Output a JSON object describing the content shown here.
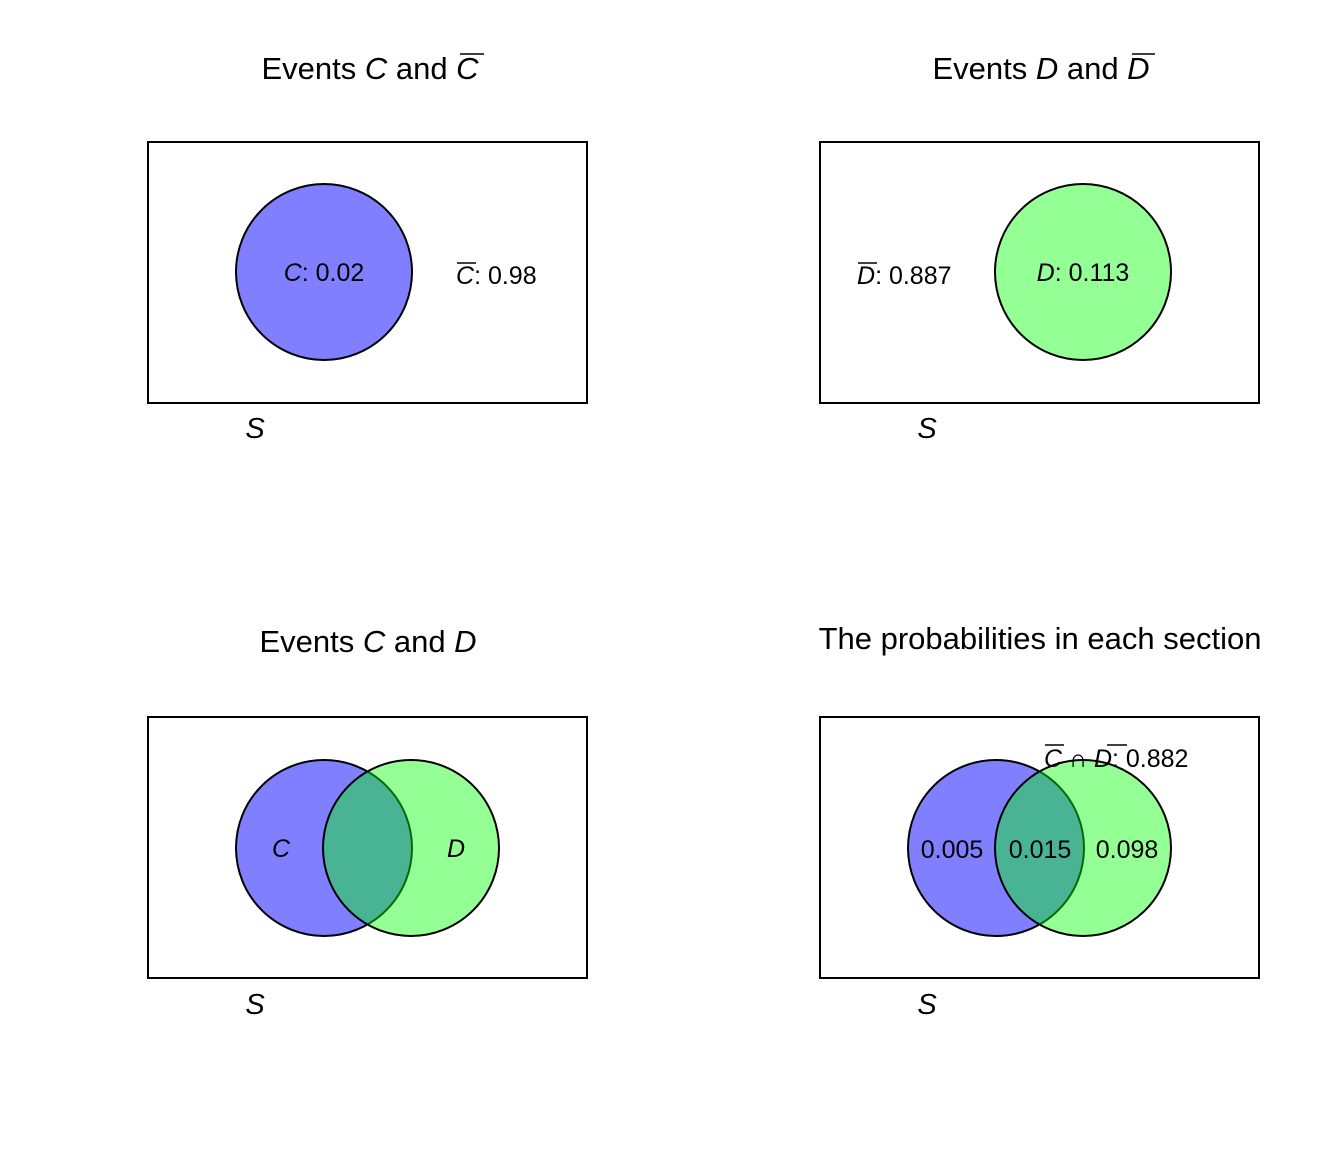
{
  "colors": {
    "event_c": "#0000ff",
    "event_d": "#00ff00",
    "overlap": "#55bf88",
    "fill_opacity": 0.5
  },
  "panels": {
    "p1": {
      "title_prefix": "Events ",
      "title_ev1": "C",
      "title_mid": " and ",
      "title_ev2": "C",
      "circle_label_var": "C",
      "circle_label_val": ": 0.02",
      "outside_label_var": "C",
      "outside_label_val": ": 0.98",
      "sample_space": "S"
    },
    "p2": {
      "title_prefix": "Events ",
      "title_ev1": "D",
      "title_mid": " and ",
      "title_ev2": "D",
      "outside_label_var": "D",
      "outside_label_val": ": 0.887",
      "circle_label_var": "D",
      "circle_label_val": ": 0.113",
      "sample_space": "S"
    },
    "p3": {
      "title_prefix": "Events ",
      "title_ev1": "C",
      "title_mid": " and ",
      "title_ev2": "D",
      "left_label": "C",
      "right_label": "D",
      "sample_space": "S"
    },
    "p4": {
      "title": "The probabilities in each section",
      "neither_var1": "C",
      "neither_cap": " ∩ ",
      "neither_var2": "D",
      "neither_val": ": 0.882",
      "c_only": "0.005",
      "both": "0.015",
      "d_only": "0.098",
      "sample_space": "S"
    }
  }
}
